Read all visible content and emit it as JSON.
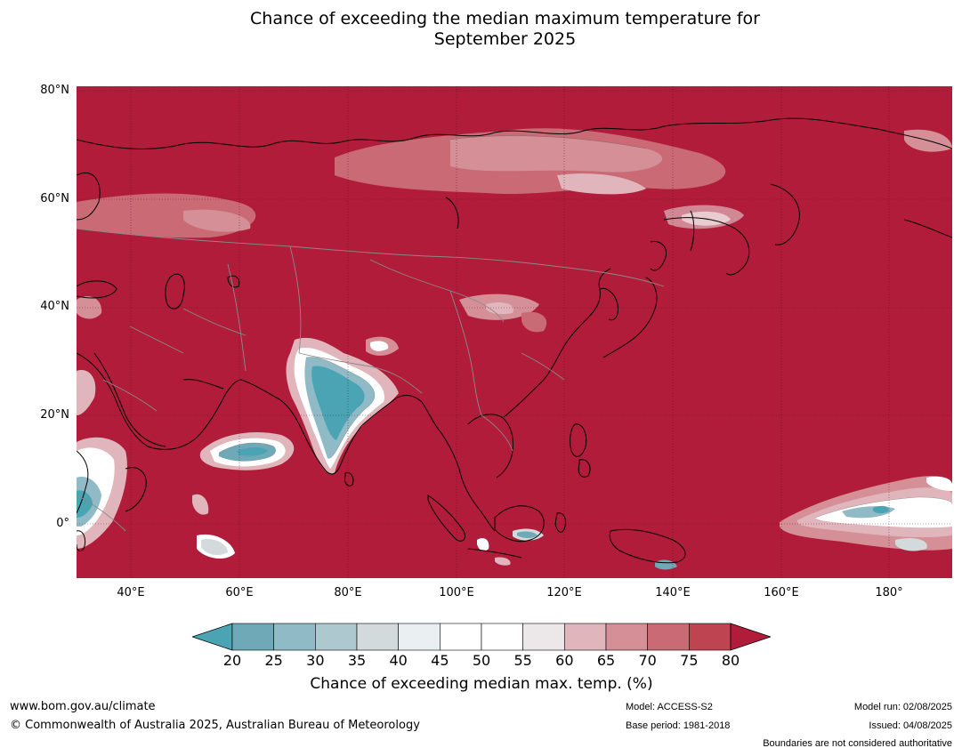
{
  "title_line1": "Chance of exceeding the median maximum temperature for",
  "title_line2": "September 2025",
  "lat_labels": [
    "80°N",
    "60°N",
    "40°N",
    "20°N",
    "0°"
  ],
  "lon_labels": [
    "40°E",
    "60°E",
    "80°E",
    "100°E",
    "120°E",
    "140°E",
    "160°E",
    "180°"
  ],
  "colorbar": {
    "ticks": [
      "20",
      "25",
      "30",
      "35",
      "40",
      "45",
      "50",
      "55",
      "60",
      "65",
      "70",
      "75",
      "80"
    ],
    "colors": [
      "#6fa8b7",
      "#8fbac6",
      "#aec8cf",
      "#d2dadc",
      "#eaf0f1",
      "#ffffff",
      "#ffffff",
      "#ece7e8",
      "#e0b6bc",
      "#d48f97",
      "#c96a74",
      "#bf4452"
    ],
    "under_color": "#4aa4b4",
    "over_color": "#b01c3a",
    "label": "Chance of exceeding median max. temp. (%)"
  },
  "colors": {
    "high": "#b01c3a",
    "mid_high": "#c96a74",
    "light": "#e0b6bc",
    "low": "#4aa4b4"
  },
  "footer": {
    "website": "www.bom.gov.au/climate",
    "copyright": "© Commonwealth of Australia 2025, Australian Bureau of Meteorology",
    "model": "Model: ACCESS-S2",
    "base_period": "Base period: 1981-2018",
    "model_run": "Model run: 02/08/2025",
    "issued": "Issued: 04/08/2025",
    "boundaries_note": "Boundaries are not considered authoritative"
  }
}
